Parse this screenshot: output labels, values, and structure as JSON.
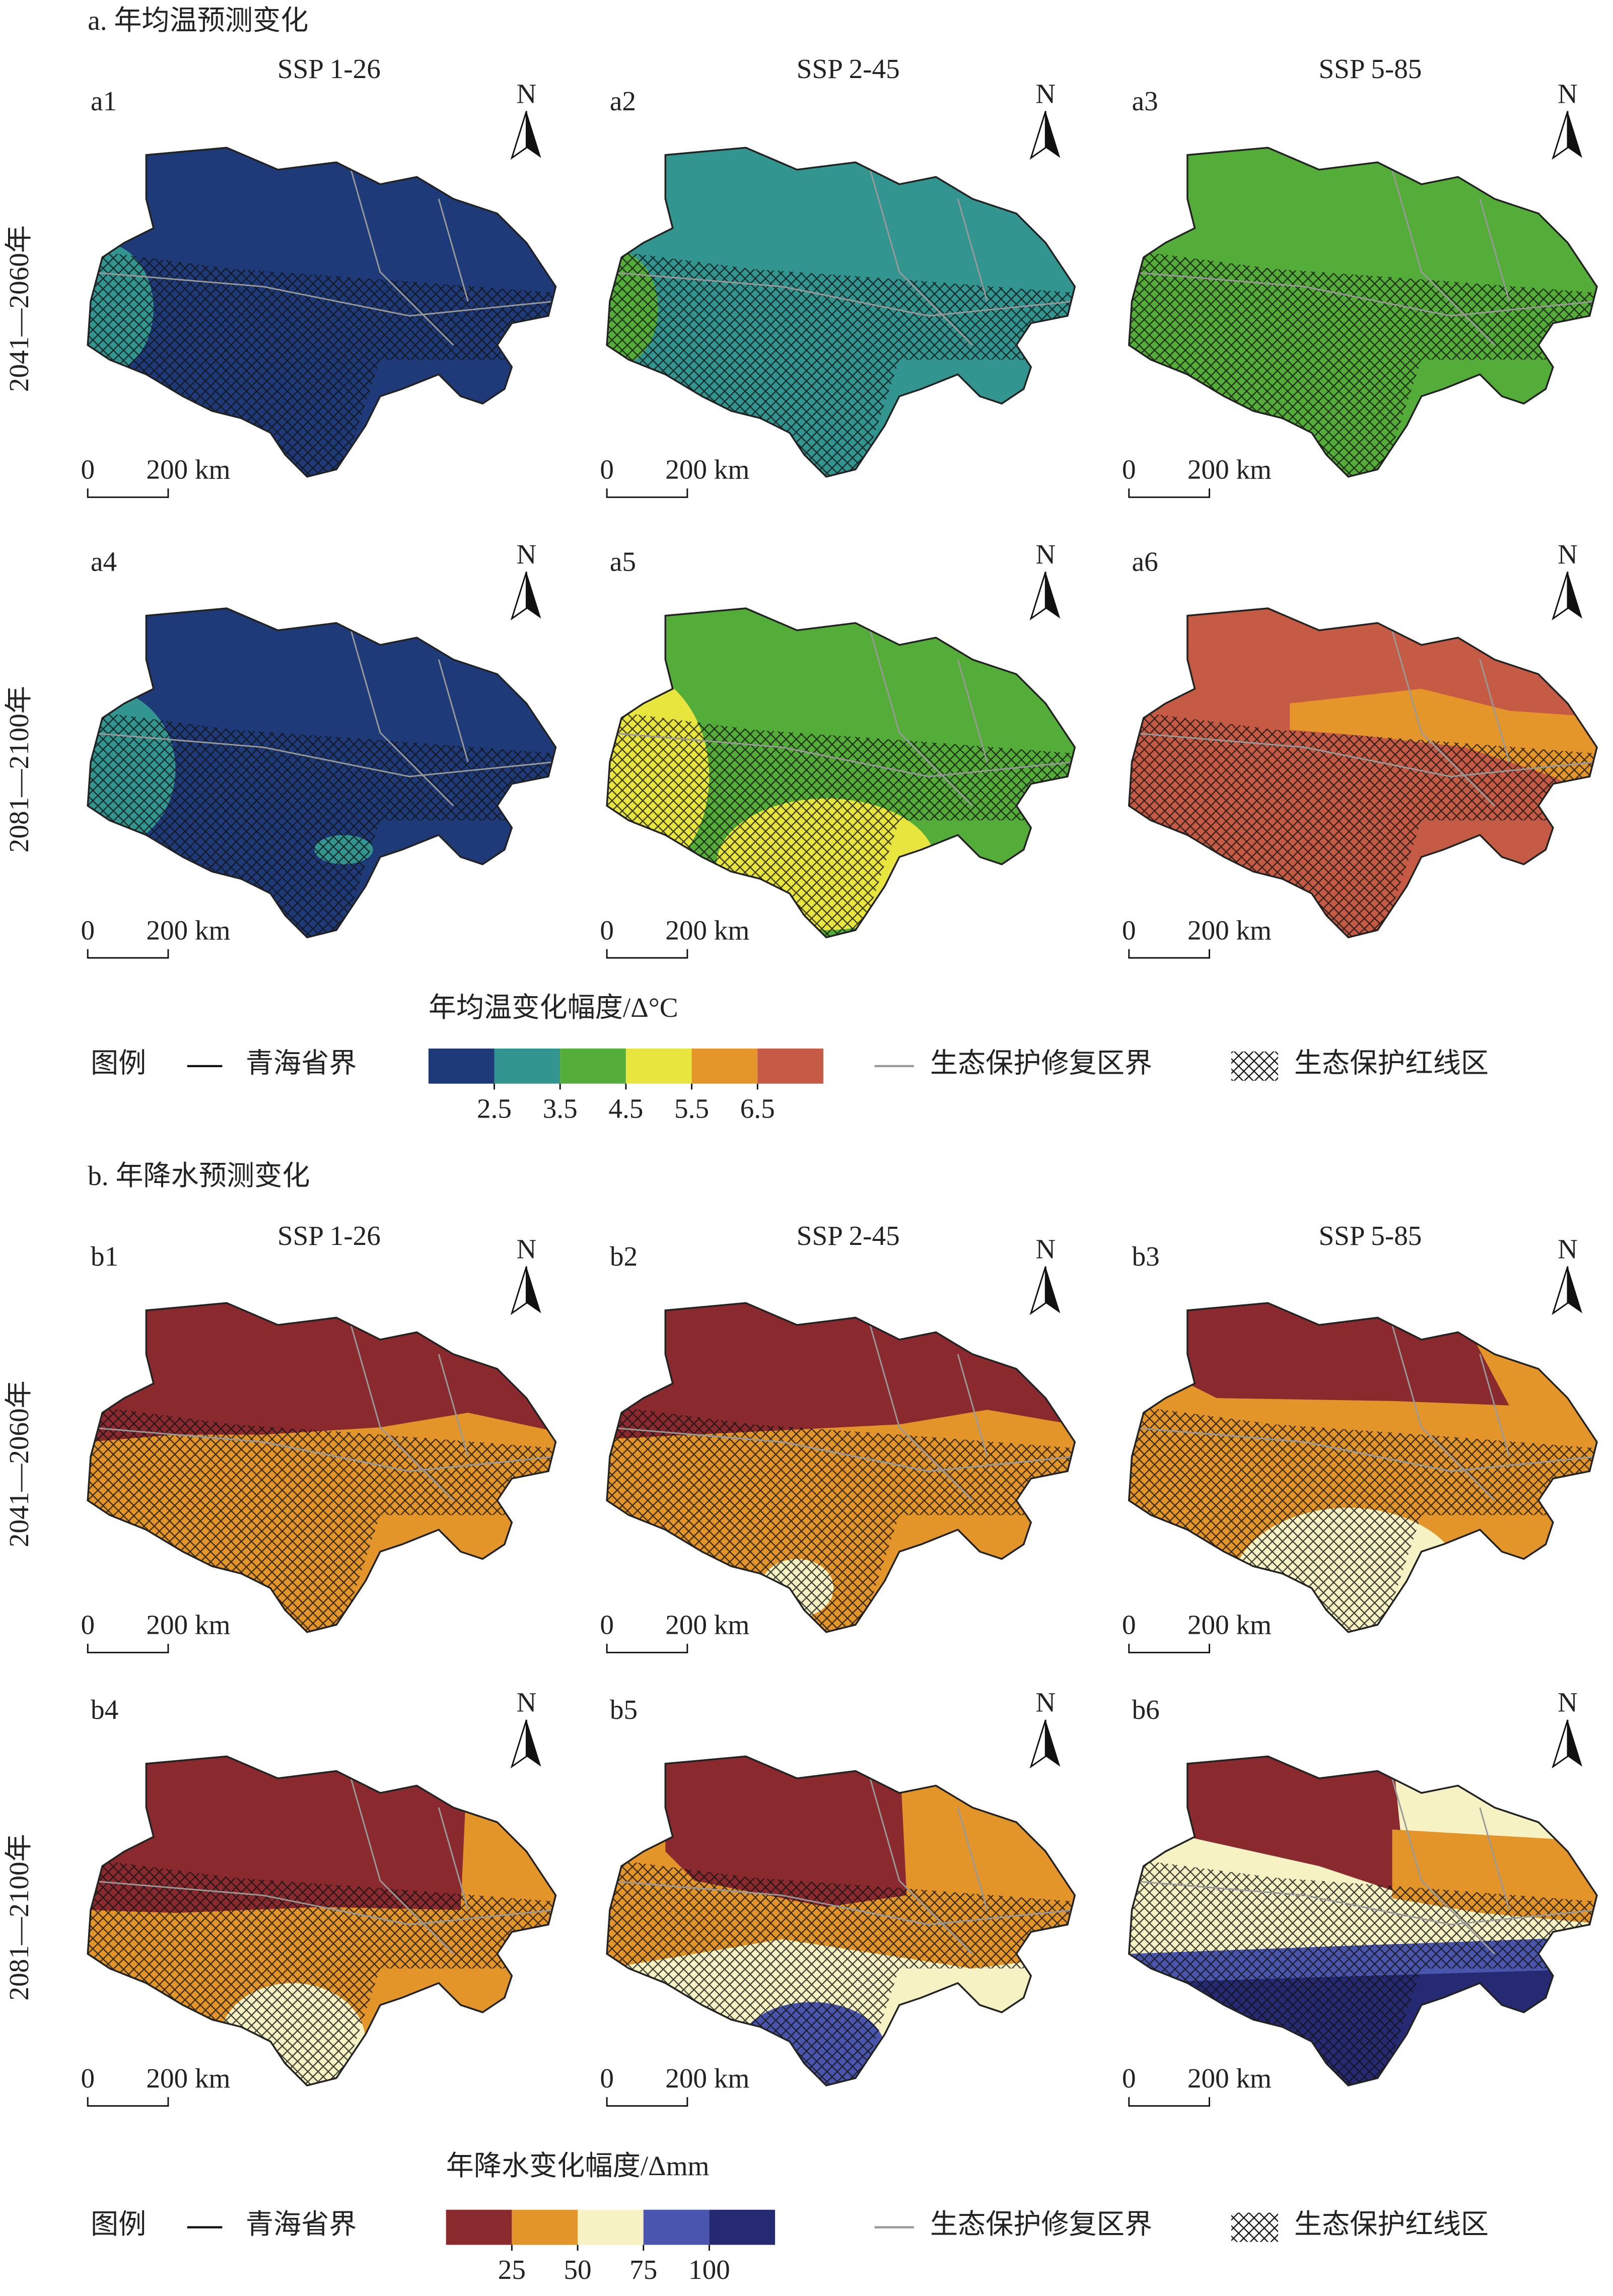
{
  "sections": [
    {
      "title": "a. 年均温预测变化",
      "columns": [
        "SSP 1-26",
        "SSP 2-45",
        "SSP 5-85"
      ],
      "rows": [
        "2041—2060年",
        "2081—2100年"
      ],
      "panels": [
        "a1",
        "a2",
        "a3",
        "a4",
        "a5",
        "a6"
      ],
      "legend": {
        "label": "图例",
        "boundary": "青海省界",
        "scale_title": "年均温变化幅度/Δ°C",
        "colors": [
          "#1f3a78",
          "#33958f",
          "#55ad39",
          "#e8e53f",
          "#e4962a",
          "#c65b45"
        ],
        "ticks": [
          2.5,
          3.5,
          4.5,
          5.5,
          6.5
        ],
        "zone_boundary": "生态保护修复区界",
        "redline": "生态保护红线区"
      }
    },
    {
      "title": "b. 年降水预测变化",
      "columns": [
        "SSP 1-26",
        "SSP 2-45",
        "SSP 5-85"
      ],
      "rows": [
        "2041—2060年",
        "2081—2100年"
      ],
      "panels": [
        "b1",
        "b2",
        "b3",
        "b4",
        "b5",
        "b6"
      ],
      "legend": {
        "label": "图例",
        "boundary": "青海省界",
        "scale_title": "年降水变化幅度/Δmm",
        "colors": [
          "#8b2a2e",
          "#e3952a",
          "#f6f2c4",
          "#4a56ad",
          "#252a73"
        ],
        "ticks": [
          25,
          50,
          75,
          100
        ],
        "zone_boundary": "生态保护修复区界",
        "redline": "生态保护红线区"
      }
    }
  ],
  "north": "N",
  "scale_bar": {
    "start": "0",
    "end": "200 km"
  }
}
